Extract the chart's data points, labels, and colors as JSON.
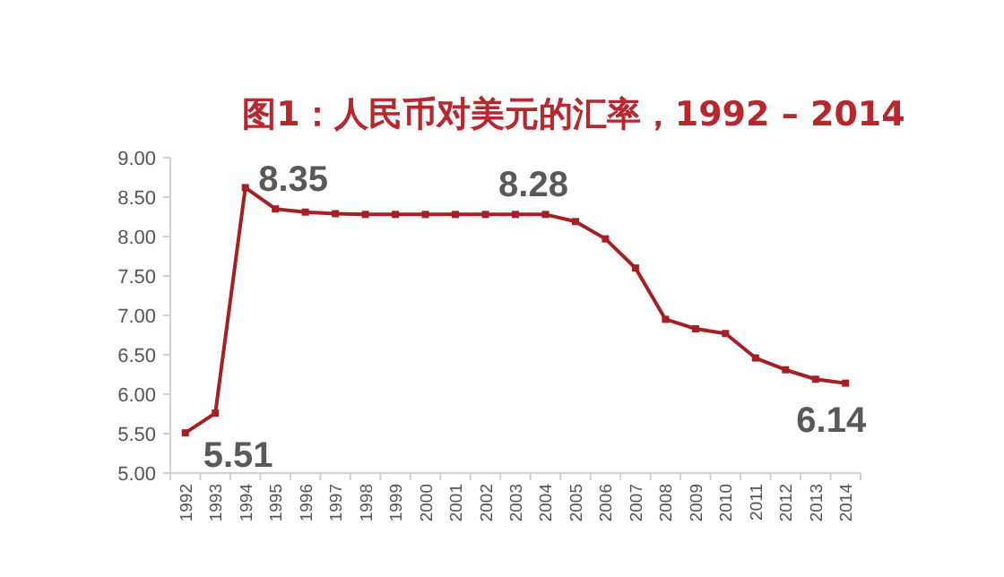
{
  "chart_data": {
    "type": "line",
    "title": "图1：人民币对美元的汇率，1992 – 2014",
    "categories": [
      "1992",
      "1993",
      "1994",
      "1995",
      "1996",
      "1997",
      "1998",
      "1999",
      "2000",
      "2001",
      "2002",
      "2003",
      "2004",
      "2005",
      "2006",
      "2007",
      "2008",
      "2009",
      "2010",
      "2011",
      "2012",
      "2013",
      "2014"
    ],
    "series": [
      {
        "color": "#a51f24",
        "values": [
          5.51,
          5.76,
          8.62,
          8.35,
          8.31,
          8.29,
          8.28,
          8.28,
          8.28,
          8.28,
          8.28,
          8.28,
          8.28,
          8.19,
          7.97,
          7.6,
          6.95,
          6.83,
          6.77,
          6.46,
          6.31,
          6.19,
          6.14
        ],
        "value_labels": [
          "5.51",
          null,
          null,
          "8.35",
          null,
          null,
          null,
          null,
          null,
          null,
          null,
          "8.28",
          null,
          null,
          null,
          null,
          null,
          null,
          null,
          null,
          null,
          null,
          "6.14"
        ]
      }
    ],
    "ylim": [
      5,
      9
    ],
    "yticks": [
      {
        "value": 5,
        "label": "5.00"
      },
      {
        "value": 5.5,
        "label": "5.50"
      },
      {
        "value": 6,
        "label": "6.00"
      },
      {
        "value": 6.5,
        "label": "6.50"
      },
      {
        "value": 7,
        "label": "7.00"
      },
      {
        "value": 7.5,
        "label": "7.50"
      },
      {
        "value": 8,
        "label": "8.00"
      },
      {
        "value": 8.5,
        "label": "8.50"
      },
      {
        "value": 9,
        "label": "9.00"
      }
    ],
    "grid": false,
    "marker": "square",
    "line_style": "solid"
  }
}
